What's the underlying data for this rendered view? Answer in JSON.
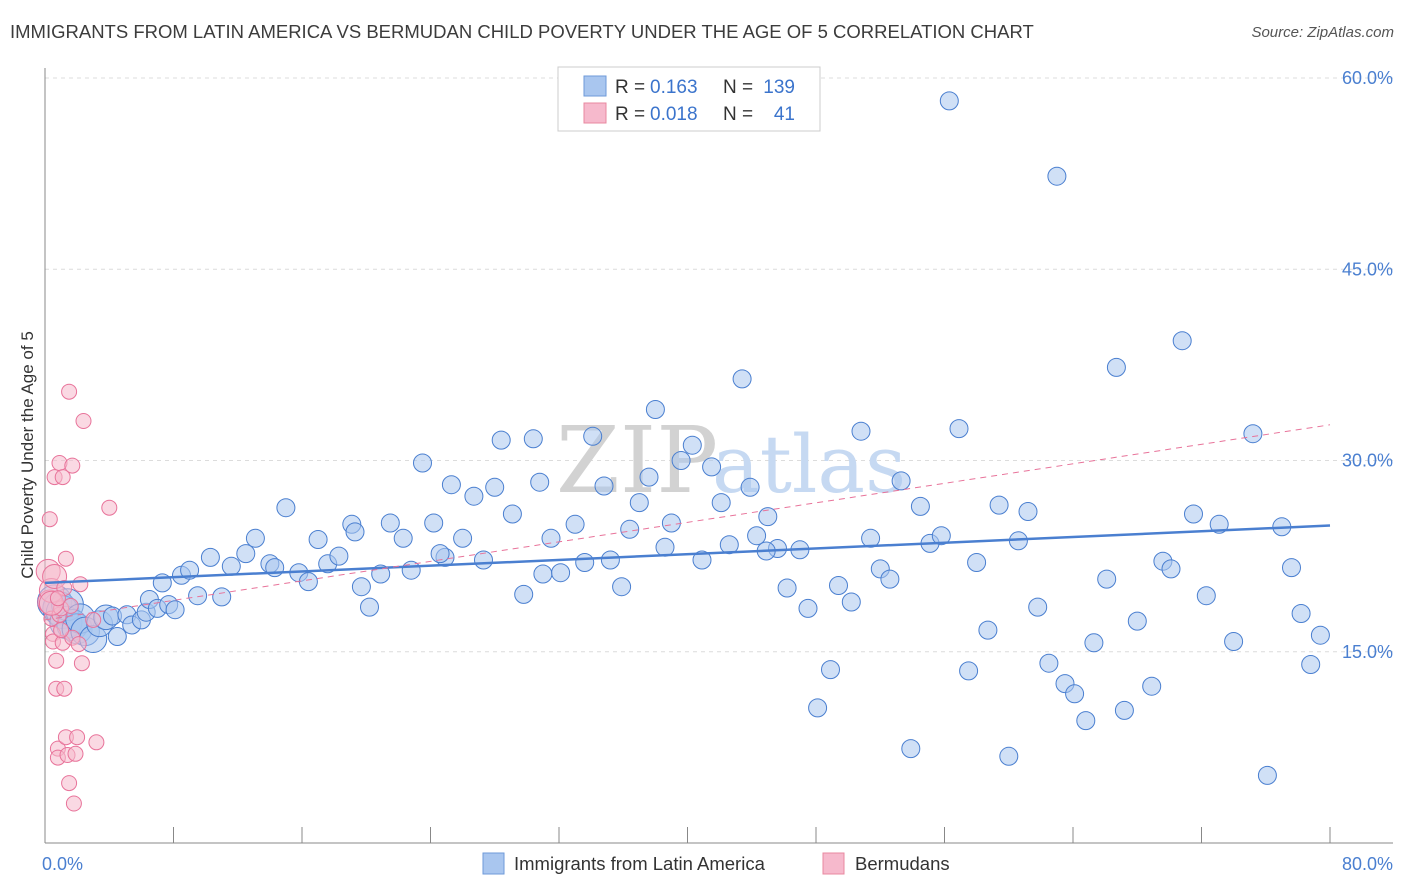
{
  "title": "IMMIGRANTS FROM LATIN AMERICA VS BERMUDAN CHILD POVERTY UNDER THE AGE OF 5 CORRELATION CHART",
  "source": "Source: ZipAtlas.com",
  "watermark": {
    "zip": "ZIP",
    "atlas": "atlas"
  },
  "colors": {
    "blue": "#4a7fd0",
    "blue_fill": "#a9c6ef",
    "pink": "#e8739a",
    "pink_fill": "#f6b9cc",
    "grid": "#dcdcdc",
    "axis": "#888888"
  },
  "stats_legend": {
    "r_label": "R =",
    "n_label": "N =",
    "rows": [
      {
        "series": "Immigrants from Latin America",
        "r": "0.163",
        "n": "139",
        "color": "blue"
      },
      {
        "series": "Bermudans",
        "r": "0.018",
        "n": "41",
        "color": "pink"
      }
    ]
  },
  "chart_data": {
    "type": "scatter",
    "title": "IMMIGRANTS FROM LATIN AMERICA VS BERMUDAN CHILD POVERTY UNDER THE AGE OF 5 CORRELATION CHART",
    "xlabel": "",
    "ylabel": "Child Poverty Under the Age of 5",
    "xlim": [
      0,
      80
    ],
    "ylim": [
      0,
      60
    ],
    "x_tick_labels": {
      "min": "0.0%",
      "max": "80.0%"
    },
    "y_ticks": [
      15,
      30,
      45,
      60
    ],
    "y_tick_labels": [
      "15.0%",
      "30.0%",
      "45.0%",
      "60.0%"
    ],
    "legend_position": "bottom-center",
    "series": [
      {
        "name": "Immigrants from Latin America",
        "color": "blue",
        "r": 0.163,
        "n": 139,
        "trend": {
          "x": [
            0,
            80
          ],
          "y": [
            20.4,
            24.9
          ],
          "style": "solid"
        },
        "points": [
          [
            0.6,
            18.9
          ],
          [
            0.9,
            18.4
          ],
          [
            1.1,
            18.1
          ],
          [
            1.3,
            17.3
          ],
          [
            1.4,
            18.7
          ],
          [
            1.7,
            17.1
          ],
          [
            2.0,
            16.8
          ],
          [
            2.2,
            17.6
          ],
          [
            2.5,
            16.6
          ],
          [
            3.0,
            16.0
          ],
          [
            3.4,
            17.2
          ],
          [
            3.8,
            17.7
          ],
          [
            4.2,
            17.8
          ],
          [
            4.5,
            16.2
          ],
          [
            5.1,
            17.9
          ],
          [
            5.4,
            17.1
          ],
          [
            6.0,
            17.5
          ],
          [
            6.3,
            18.1
          ],
          [
            6.5,
            19.1
          ],
          [
            7.0,
            18.4
          ],
          [
            7.3,
            20.4
          ],
          [
            7.7,
            18.7
          ],
          [
            8.1,
            18.3
          ],
          [
            8.5,
            21.0
          ],
          [
            9.0,
            21.4
          ],
          [
            9.5,
            19.4
          ],
          [
            10.3,
            22.4
          ],
          [
            11.0,
            19.3
          ],
          [
            11.6,
            21.7
          ],
          [
            12.5,
            22.7
          ],
          [
            13.1,
            23.9
          ],
          [
            14.0,
            21.9
          ],
          [
            14.3,
            21.6
          ],
          [
            15.0,
            26.3
          ],
          [
            15.8,
            21.2
          ],
          [
            16.4,
            20.5
          ],
          [
            17.0,
            23.8
          ],
          [
            17.6,
            21.9
          ],
          [
            18.3,
            22.5
          ],
          [
            19.1,
            25.0
          ],
          [
            19.7,
            20.1
          ],
          [
            20.2,
            18.5
          ],
          [
            20.9,
            21.1
          ],
          [
            21.5,
            25.1
          ],
          [
            22.3,
            23.9
          ],
          [
            22.8,
            21.4
          ],
          [
            23.5,
            29.8
          ],
          [
            24.2,
            25.1
          ],
          [
            24.9,
            22.4
          ],
          [
            25.3,
            28.1
          ],
          [
            26.0,
            23.9
          ],
          [
            26.7,
            27.2
          ],
          [
            27.3,
            22.2
          ],
          [
            28.0,
            27.9
          ],
          [
            28.4,
            31.6
          ],
          [
            29.1,
            25.8
          ],
          [
            29.8,
            19.5
          ],
          [
            30.4,
            31.7
          ],
          [
            31.0,
            21.1
          ],
          [
            31.5,
            23.9
          ],
          [
            32.1,
            21.2
          ],
          [
            33.0,
            25.0
          ],
          [
            33.6,
            22.0
          ],
          [
            34.1,
            31.9
          ],
          [
            34.8,
            28.0
          ],
          [
            35.2,
            22.2
          ],
          [
            35.9,
            20.1
          ],
          [
            36.4,
            24.6
          ],
          [
            37.0,
            26.7
          ],
          [
            37.6,
            28.7
          ],
          [
            38.0,
            34.0
          ],
          [
            38.6,
            23.2
          ],
          [
            39.0,
            25.1
          ],
          [
            39.6,
            30.0
          ],
          [
            40.3,
            31.2
          ],
          [
            40.9,
            22.2
          ],
          [
            41.5,
            29.5
          ],
          [
            42.1,
            26.7
          ],
          [
            42.6,
            23.4
          ],
          [
            43.4,
            36.4
          ],
          [
            43.9,
            27.9
          ],
          [
            44.3,
            24.1
          ],
          [
            45.0,
            25.6
          ],
          [
            45.6,
            23.1
          ],
          [
            46.2,
            20.0
          ],
          [
            47.0,
            23.0
          ],
          [
            47.5,
            18.4
          ],
          [
            48.1,
            10.6
          ],
          [
            48.9,
            13.6
          ],
          [
            49.4,
            20.2
          ],
          [
            50.2,
            18.9
          ],
          [
            50.8,
            32.3
          ],
          [
            51.4,
            23.9
          ],
          [
            52.0,
            21.5
          ],
          [
            52.6,
            20.7
          ],
          [
            53.3,
            28.4
          ],
          [
            53.9,
            7.4
          ],
          [
            54.5,
            26.4
          ],
          [
            55.1,
            23.5
          ],
          [
            55.8,
            24.1
          ],
          [
            56.3,
            58.2
          ],
          [
            56.9,
            32.5
          ],
          [
            57.5,
            13.5
          ],
          [
            58.0,
            22.0
          ],
          [
            58.7,
            16.7
          ],
          [
            59.4,
            26.5
          ],
          [
            60.0,
            6.8
          ],
          [
            60.6,
            23.7
          ],
          [
            61.2,
            26.0
          ],
          [
            61.8,
            18.5
          ],
          [
            62.5,
            14.1
          ],
          [
            63.0,
            52.3
          ],
          [
            63.5,
            12.5
          ],
          [
            64.1,
            11.7
          ],
          [
            64.8,
            9.6
          ],
          [
            65.3,
            15.7
          ],
          [
            66.1,
            20.7
          ],
          [
            66.7,
            37.3
          ],
          [
            67.2,
            10.4
          ],
          [
            68.0,
            17.4
          ],
          [
            68.9,
            12.3
          ],
          [
            69.6,
            22.1
          ],
          [
            70.1,
            21.5
          ],
          [
            70.8,
            39.4
          ],
          [
            71.5,
            25.8
          ],
          [
            72.3,
            19.4
          ],
          [
            73.1,
            25.0
          ],
          [
            74.0,
            15.8
          ],
          [
            75.2,
            32.1
          ],
          [
            76.1,
            5.3
          ],
          [
            77.0,
            24.8
          ],
          [
            77.6,
            21.6
          ],
          [
            78.2,
            18.0
          ],
          [
            78.8,
            14.0
          ],
          [
            79.4,
            16.3
          ],
          [
            30.8,
            28.3
          ],
          [
            24.6,
            22.7
          ],
          [
            19.3,
            24.4
          ],
          [
            44.9,
            22.9
          ]
        ]
      },
      {
        "name": "Bermudans",
        "color": "pink",
        "r": 0.018,
        "n": 41,
        "trend": {
          "x": [
            0,
            80
          ],
          "y": [
            17.5,
            32.8
          ],
          "style": "dashed"
        },
        "points": [
          [
            0.2,
            21.3
          ],
          [
            0.3,
            18.9
          ],
          [
            0.3,
            25.4
          ],
          [
            0.4,
            19.8
          ],
          [
            0.4,
            17.6
          ],
          [
            0.5,
            16.4
          ],
          [
            0.5,
            15.8
          ],
          [
            0.6,
            20.9
          ],
          [
            0.6,
            28.7
          ],
          [
            0.7,
            14.3
          ],
          [
            0.7,
            12.1
          ],
          [
            0.8,
            7.4
          ],
          [
            0.8,
            6.7
          ],
          [
            0.9,
            17.9
          ],
          [
            0.9,
            29.8
          ],
          [
            1.0,
            18.4
          ],
          [
            1.1,
            28.7
          ],
          [
            1.1,
            15.7
          ],
          [
            1.2,
            20.0
          ],
          [
            1.2,
            12.1
          ],
          [
            1.3,
            22.3
          ],
          [
            1.3,
            8.3
          ],
          [
            1.4,
            6.9
          ],
          [
            1.5,
            35.4
          ],
          [
            1.5,
            4.7
          ],
          [
            1.6,
            18.6
          ],
          [
            1.7,
            29.6
          ],
          [
            1.7,
            16.1
          ],
          [
            1.8,
            3.1
          ],
          [
            1.9,
            7.0
          ],
          [
            2.0,
            8.3
          ],
          [
            2.1,
            15.6
          ],
          [
            2.2,
            20.3
          ],
          [
            2.3,
            14.1
          ],
          [
            2.4,
            33.1
          ],
          [
            3.0,
            17.5
          ],
          [
            3.2,
            7.9
          ],
          [
            4.0,
            26.3
          ],
          [
            0.4,
            18.8
          ],
          [
            0.8,
            19.2
          ],
          [
            1.0,
            16.7
          ]
        ]
      }
    ]
  },
  "bottom_legend": [
    {
      "label": "Immigrants from Latin America",
      "color": "blue"
    },
    {
      "label": "Bermudans",
      "color": "pink"
    }
  ]
}
